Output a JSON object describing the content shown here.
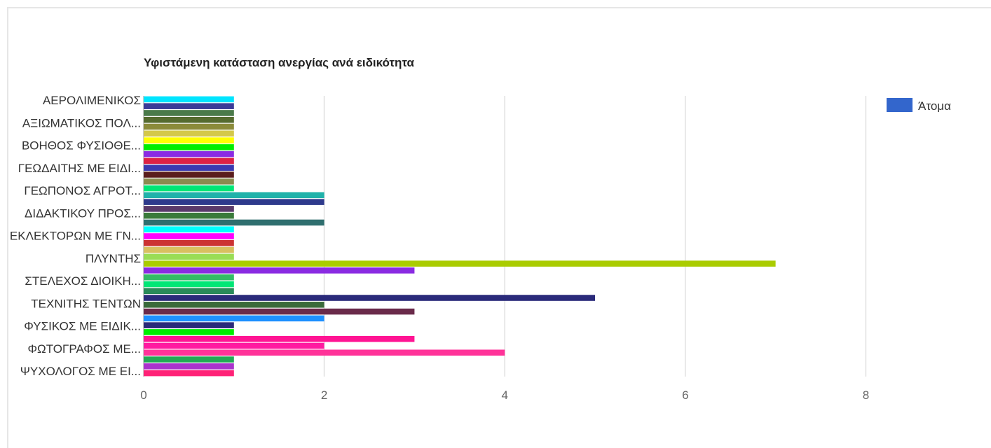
{
  "chart_data": {
    "type": "bar",
    "orientation": "horizontal",
    "title": "Υφιστάμενη κατάσταση ανεργίας ανά ειδικότητα",
    "xlabel": "",
    "ylabel": "",
    "xlim": [
      0,
      9.2
    ],
    "x_ticks": [
      0,
      2,
      4,
      6,
      8
    ],
    "grid": true,
    "legend": {
      "position": "right-top",
      "label": "Άτομα",
      "color": "#3366cc"
    },
    "category_labels": [
      "ΑΕΡΟΛΙΜΕΝΙΚΟΣ",
      "ΑΞΙΩΜΑΤΙΚΟΣ ΠΟΛ...",
      "ΒΟΗΘΟΣ ΦΥΣΙΟΘΕ...",
      "ΓΕΩΔΑΙΤΗΣ ΜΕ ΕΙΔΙ...",
      "ΓΕΩΠΟΝΟΣ ΑΓΡΟΤ...",
      "ΔΙΔΑΚΤΙΚΟΥ ΠΡΟΣ...",
      "ΕΚΛΕΚΤΟΡΩΝ ΜΕ ΓΝ...",
      "ΠΛΥΝΤΗΣ",
      "ΣΤΕΛΕΧΟΣ ΔΙΟΙΚΗ...",
      "ΤΕΧΝΙΤΗΣ ΤΕΝΤΩΝ",
      "ΦΥΣΙΚΟΣ ΜΕ ΕΙΔΙΚ...",
      "ΦΩΤΟΓΡΑΦΟΣ ΜΕ...",
      "ΨΥΧΟΛΟΓΟΣ ΜΕ ΕΙ..."
    ],
    "values": [
      1,
      1,
      1,
      1,
      1,
      1,
      1,
      1,
      1,
      1,
      1,
      1,
      1,
      1,
      2,
      2,
      1,
      1,
      2,
      1,
      1,
      1,
      1,
      1,
      7,
      3,
      1,
      1,
      1,
      5,
      2,
      3,
      2,
      1,
      1,
      3,
      2,
      4,
      1,
      1,
      1
    ],
    "colors": [
      "#00e5ff",
      "#3b3b98",
      "#4a7a4a",
      "#556b2f",
      "#8b8b3a",
      "#d4c84a",
      "#ffff00",
      "#00ee00",
      "#8a2be2",
      "#dd2244",
      "#3a3ab0",
      "#5a1d1d",
      "#8b8b50",
      "#00e676",
      "#20b2aa",
      "#2e3a8c",
      "#5a3a6a",
      "#3a7a3a",
      "#2f6f6f",
      "#00ffff",
      "#ff00ff",
      "#cc3333",
      "#d8c060",
      "#99dd55",
      "#aacc00",
      "#8a2be2",
      "#33bb66",
      "#00e676",
      "#2a8a5a",
      "#2a2a7a",
      "#3a6a3a",
      "#6a2a4a",
      "#1e90ff",
      "#2a2a7a",
      "#00ee00",
      "#ff1493",
      "#ff1aa0",
      "#ff3399",
      "#22aa55",
      "#aa33cc",
      "#ff2277"
    ]
  }
}
